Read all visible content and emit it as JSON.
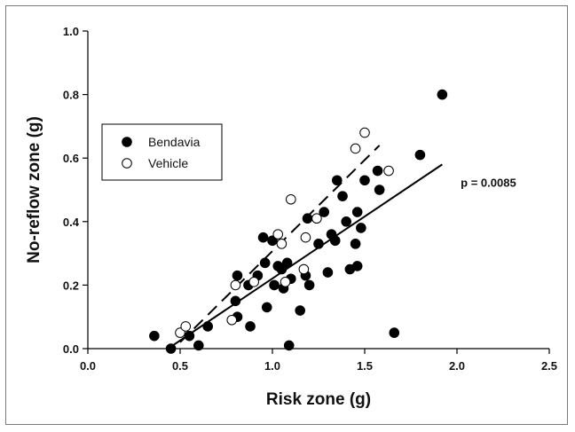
{
  "chart_data": {
    "type": "scatter",
    "xlabel": "Risk zone (g)",
    "ylabel": "No-reflow zone (g)",
    "xlim": [
      0.0,
      2.5
    ],
    "ylim": [
      0.0,
      1.0
    ],
    "x_ticks": [
      "0.0",
      "0.5",
      "1.0",
      "1.5",
      "2.0",
      "2.5"
    ],
    "y_ticks": [
      "0.0",
      "0.2",
      "0.4",
      "0.6",
      "0.8",
      "1.0"
    ],
    "x_tick_values": [
      0.0,
      0.5,
      1.0,
      1.5,
      2.0,
      2.5
    ],
    "y_tick_values": [
      0.0,
      0.2,
      0.4,
      0.6,
      0.8,
      1.0
    ],
    "grid": false,
    "legend_position": "left",
    "annotation": "p = 0.0085",
    "series": [
      {
        "name": "Bendavia",
        "marker": "filled-circle",
        "color": "#000000",
        "points": [
          [
            0.36,
            0.04
          ],
          [
            0.45,
            0.0
          ],
          [
            0.55,
            0.04
          ],
          [
            0.6,
            0.01
          ],
          [
            0.65,
            0.07
          ],
          [
            0.81,
            0.23
          ],
          [
            0.8,
            0.15
          ],
          [
            0.81,
            0.1
          ],
          [
            0.88,
            0.07
          ],
          [
            0.87,
            0.2
          ],
          [
            0.92,
            0.23
          ],
          [
            0.95,
            0.35
          ],
          [
            0.96,
            0.27
          ],
          [
            0.97,
            0.13
          ],
          [
            1.0,
            0.34
          ],
          [
            1.01,
            0.2
          ],
          [
            1.03,
            0.26
          ],
          [
            1.05,
            0.25
          ],
          [
            1.06,
            0.19
          ],
          [
            1.08,
            0.27
          ],
          [
            1.09,
            0.01
          ],
          [
            1.1,
            0.22
          ],
          [
            1.15,
            0.12
          ],
          [
            1.18,
            0.23
          ],
          [
            1.19,
            0.41
          ],
          [
            1.2,
            0.2
          ],
          [
            1.25,
            0.33
          ],
          [
            1.28,
            0.43
          ],
          [
            1.3,
            0.24
          ],
          [
            1.32,
            0.36
          ],
          [
            1.34,
            0.34
          ],
          [
            1.35,
            0.53
          ],
          [
            1.38,
            0.48
          ],
          [
            1.4,
            0.4
          ],
          [
            1.42,
            0.25
          ],
          [
            1.45,
            0.33
          ],
          [
            1.46,
            0.43
          ],
          [
            1.46,
            0.26
          ],
          [
            1.48,
            0.38
          ],
          [
            1.5,
            0.53
          ],
          [
            1.57,
            0.56
          ],
          [
            1.58,
            0.5
          ],
          [
            1.66,
            0.05
          ],
          [
            1.8,
            0.61
          ],
          [
            1.92,
            0.8
          ]
        ],
        "fit_line": {
          "style": "solid",
          "from": [
            0.46,
            0.01
          ],
          "to": [
            1.92,
            0.58
          ]
        }
      },
      {
        "name": "Vehicle",
        "marker": "open-circle",
        "color": "#000000",
        "points": [
          [
            0.5,
            0.05
          ],
          [
            0.53,
            0.07
          ],
          [
            0.78,
            0.09
          ],
          [
            0.8,
            0.2
          ],
          [
            0.9,
            0.21
          ],
          [
            1.03,
            0.36
          ],
          [
            1.05,
            0.33
          ],
          [
            1.07,
            0.21
          ],
          [
            1.1,
            0.47
          ],
          [
            1.17,
            0.25
          ],
          [
            1.18,
            0.35
          ],
          [
            1.24,
            0.41
          ],
          [
            1.45,
            0.63
          ],
          [
            1.5,
            0.68
          ],
          [
            1.63,
            0.56
          ]
        ],
        "fit_line": {
          "style": "dashed",
          "from": [
            0.5,
            0.02
          ],
          "to": [
            1.58,
            0.64
          ]
        }
      }
    ]
  }
}
